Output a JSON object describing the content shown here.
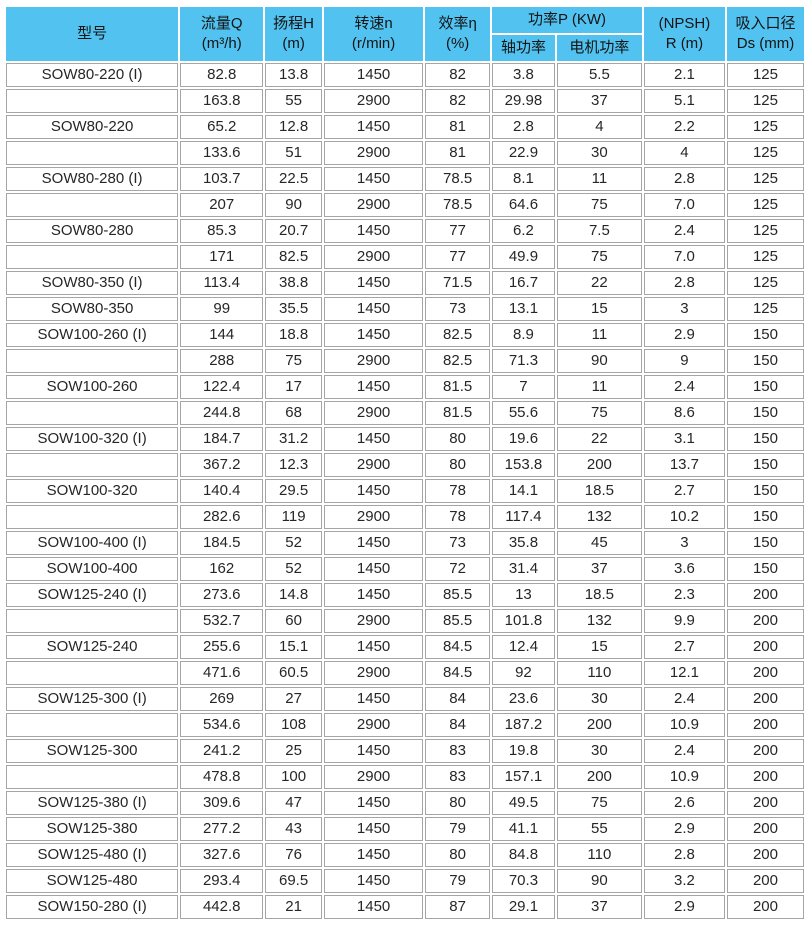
{
  "colors": {
    "header_bg": "#52c2f0",
    "cell_border": "#a5a5a5",
    "text": "#262626"
  },
  "table": {
    "header": {
      "model": "型号",
      "flow_line1": "流量Q",
      "flow_line2": "(m³/h)",
      "head_line1": "扬程H",
      "head_line2": "(m)",
      "speed_line1": "转速n",
      "speed_line2": "(r/min)",
      "efficiency_line1": "效率η",
      "efficiency_line2": "(%)",
      "power": "功率P (KW)",
      "shaft_power": "轴功率",
      "motor_power": "电机功率",
      "npsh_line1": "(NPSH)",
      "npsh_line2": "R (m)",
      "inlet_line1": "吸入口径",
      "inlet_line2": "Ds (mm)"
    },
    "rows": [
      [
        "SOW80-220 (I)",
        "82.8",
        "13.8",
        "1450",
        "82",
        "3.8",
        "5.5",
        "2.1",
        "125"
      ],
      [
        "",
        "163.8",
        "55",
        "2900",
        "82",
        "29.98",
        "37",
        "5.1",
        "125"
      ],
      [
        "SOW80-220",
        "65.2",
        "12.8",
        "1450",
        "81",
        "2.8",
        "4",
        "2.2",
        "125"
      ],
      [
        "",
        "133.6",
        "51",
        "2900",
        "81",
        "22.9",
        "30",
        "4",
        "125"
      ],
      [
        "SOW80-280 (I)",
        "103.7",
        "22.5",
        "1450",
        "78.5",
        "8.1",
        "11",
        "2.8",
        "125"
      ],
      [
        "",
        "207",
        "90",
        "2900",
        "78.5",
        "64.6",
        "75",
        "7.0",
        "125"
      ],
      [
        "SOW80-280",
        "85.3",
        "20.7",
        "1450",
        "77",
        "6.2",
        "7.5",
        "2.4",
        "125"
      ],
      [
        "",
        "171",
        "82.5",
        "2900",
        "77",
        "49.9",
        "75",
        "7.0",
        "125"
      ],
      [
        "SOW80-350 (I)",
        "113.4",
        "38.8",
        "1450",
        "71.5",
        "16.7",
        "22",
        "2.8",
        "125"
      ],
      [
        "SOW80-350",
        "99",
        "35.5",
        "1450",
        "73",
        "13.1",
        "15",
        "3",
        "125"
      ],
      [
        "SOW100-260 (I)",
        "144",
        "18.8",
        "1450",
        "82.5",
        "8.9",
        "11",
        "2.9",
        "150"
      ],
      [
        "",
        "288",
        "75",
        "2900",
        "82.5",
        "71.3",
        "90",
        "9",
        "150"
      ],
      [
        "SOW100-260",
        "122.4",
        "17",
        "1450",
        "81.5",
        "7",
        "11",
        "2.4",
        "150"
      ],
      [
        "",
        "244.8",
        "68",
        "2900",
        "81.5",
        "55.6",
        "75",
        "8.6",
        "150"
      ],
      [
        "SOW100-320 (I)",
        "184.7",
        "31.2",
        "1450",
        "80",
        "19.6",
        "22",
        "3.1",
        "150"
      ],
      [
        "",
        "367.2",
        "12.3",
        "2900",
        "80",
        "153.8",
        "200",
        "13.7",
        "150"
      ],
      [
        "SOW100-320",
        "140.4",
        "29.5",
        "1450",
        "78",
        "14.1",
        "18.5",
        "2.7",
        "150"
      ],
      [
        "",
        "282.6",
        "119",
        "2900",
        "78",
        "117.4",
        "132",
        "10.2",
        "150"
      ],
      [
        "SOW100-400 (I)",
        "184.5",
        "52",
        "1450",
        "73",
        "35.8",
        "45",
        "3",
        "150"
      ],
      [
        "SOW100-400",
        "162",
        "52",
        "1450",
        "72",
        "31.4",
        "37",
        "3.6",
        "150"
      ],
      [
        "SOW125-240 (I)",
        "273.6",
        "14.8",
        "1450",
        "85.5",
        "13",
        "18.5",
        "2.3",
        "200"
      ],
      [
        "",
        "532.7",
        "60",
        "2900",
        "85.5",
        "101.8",
        "132",
        "9.9",
        "200"
      ],
      [
        "SOW125-240",
        "255.6",
        "15.1",
        "1450",
        "84.5",
        "12.4",
        "15",
        "2.7",
        "200"
      ],
      [
        "",
        "471.6",
        "60.5",
        "2900",
        "84.5",
        "92",
        "110",
        "12.1",
        "200"
      ],
      [
        "SOW125-300 (I)",
        "269",
        "27",
        "1450",
        "84",
        "23.6",
        "30",
        "2.4",
        "200"
      ],
      [
        "",
        "534.6",
        "108",
        "2900",
        "84",
        "187.2",
        "200",
        "10.9",
        "200"
      ],
      [
        "SOW125-300",
        "241.2",
        "25",
        "1450",
        "83",
        "19.8",
        "30",
        "2.4",
        "200"
      ],
      [
        "",
        "478.8",
        "100",
        "2900",
        "83",
        "157.1",
        "200",
        "10.9",
        "200"
      ],
      [
        "SOW125-380 (I)",
        "309.6",
        "47",
        "1450",
        "80",
        "49.5",
        "75",
        "2.6",
        "200"
      ],
      [
        "SOW125-380",
        "277.2",
        "43",
        "1450",
        "79",
        "41.1",
        "55",
        "2.9",
        "200"
      ],
      [
        "SOW125-480 (I)",
        "327.6",
        "76",
        "1450",
        "80",
        "84.8",
        "110",
        "2.8",
        "200"
      ],
      [
        "SOW125-480",
        "293.4",
        "69.5",
        "1450",
        "79",
        "70.3",
        "90",
        "3.2",
        "200"
      ],
      [
        "SOW150-280 (I)",
        "442.8",
        "21",
        "1450",
        "87",
        "29.1",
        "37",
        "2.9",
        "200"
      ]
    ]
  }
}
